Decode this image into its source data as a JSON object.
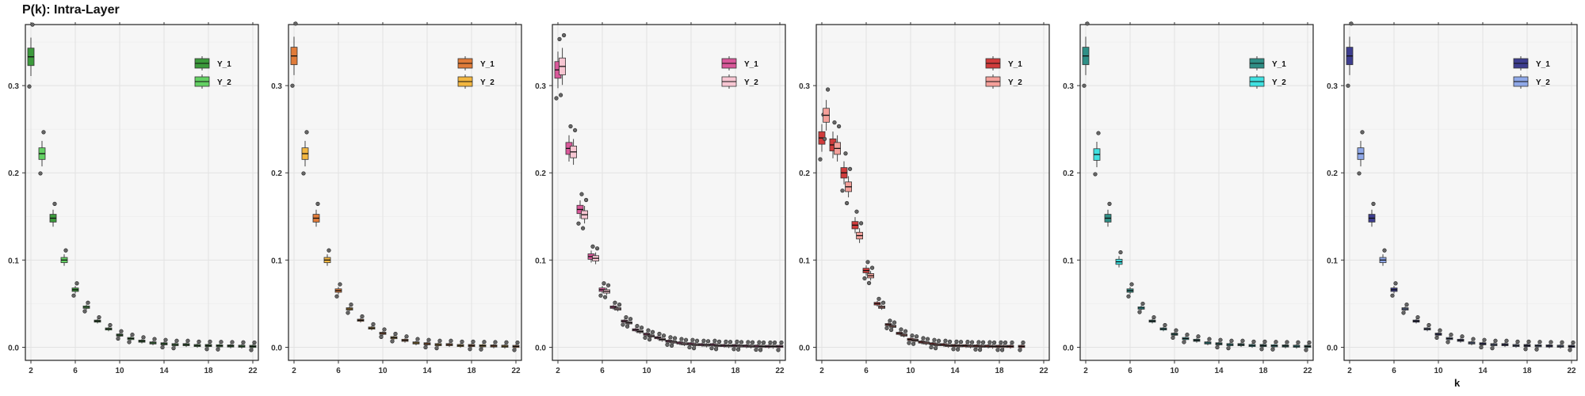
{
  "title": "P(k): Intra-Layer",
  "chart_data": {
    "type": "box",
    "xlabel": "k",
    "ylabel": "",
    "xlim": [
      1.5,
      22.5
    ],
    "ylim": [
      -0.015,
      0.37
    ],
    "xticks": [
      2,
      6,
      10,
      14,
      18,
      22
    ],
    "yticks": [
      0.0,
      0.1,
      0.2,
      0.3
    ],
    "ytick_labels": [
      "0.0",
      "0.1",
      "0.2",
      "0.3"
    ],
    "grid": true,
    "legend_position": "top-right",
    "panels": [
      {
        "series": [
          {
            "name": "Y_1",
            "color": "#3c9a3c",
            "k": [
              2,
              4,
              6,
              8,
              10,
              12,
              14,
              16,
              18,
              20,
              22
            ],
            "median": [
              0.333,
              0.148,
              0.066,
              0.03,
              0.014,
              0.007,
              0.004,
              0.003,
              0.002,
              0.0015,
              0.001
            ]
          },
          {
            "name": "Y_2",
            "color": "#63d063",
            "k": [
              3,
              5,
              7,
              9,
              11,
              13,
              15,
              17,
              19,
              21
            ],
            "median": [
              0.222,
              0.1,
              0.046,
              0.021,
              0.01,
              0.005,
              0.003,
              0.002,
              0.0017,
              0.0012
            ]
          }
        ]
      },
      {
        "series": [
          {
            "name": "Y_1",
            "color": "#e07b39",
            "k": [
              2,
              4,
              6,
              8,
              10,
              12,
              14,
              16,
              18,
              20,
              22
            ],
            "median": [
              0.334,
              0.148,
              0.065,
              0.031,
              0.016,
              0.008,
              0.004,
              0.003,
              0.002,
              0.0015,
              0.001
            ]
          },
          {
            "name": "Y_2",
            "color": "#f2b640",
            "k": [
              3,
              5,
              7,
              9,
              11,
              13,
              15,
              17,
              19,
              21
            ],
            "median": [
              0.222,
              0.1,
              0.044,
              0.022,
              0.011,
              0.005,
              0.003,
              0.002,
              0.0017,
              0.0012
            ]
          }
        ]
      },
      {
        "series": [
          {
            "name": "Y_1",
            "color": "#d9589a",
            "k": [
              2,
              3,
              4,
              5,
              6,
              7,
              8,
              9,
              10,
              11,
              12,
              13,
              14,
              15,
              16,
              17,
              18,
              19,
              20,
              21,
              22
            ],
            "median": [
              0.318,
              0.228,
              0.158,
              0.104,
              0.066,
              0.046,
              0.03,
              0.02,
              0.015,
              0.011,
              0.007,
              0.005,
              0.004,
              0.003,
              0.003,
              0.002,
              0.002,
              0.0015,
              0.0013,
              0.001,
              0.001
            ]
          },
          {
            "name": "Y_2",
            "color": "#f7c6d2",
            "k": [
              2.4,
              3.4,
              4.4,
              5.4,
              6.4,
              7.4,
              8.4,
              9.4,
              10.4,
              11.4,
              12.4,
              13.4,
              14.4,
              15.4,
              16.4,
              17.4,
              18.4,
              19.4,
              20.4,
              21.4
            ],
            "median": [
              0.322,
              0.224,
              0.152,
              0.102,
              0.064,
              0.044,
              0.028,
              0.018,
              0.013,
              0.009,
              0.006,
              0.004,
              0.003,
              0.0025,
              0.002,
              0.0017,
              0.0015,
              0.0012,
              0.001,
              0.001
            ]
          }
        ]
      },
      {
        "series": [
          {
            "name": "Y_1",
            "color": "#d03c3c",
            "k": [
              2,
              3,
              4,
              5,
              6,
              7,
              8,
              9,
              10,
              11,
              12,
              13,
              14,
              15,
              16,
              17,
              18,
              19,
              20
            ],
            "median": [
              0.24,
              0.232,
              0.2,
              0.14,
              0.088,
              0.05,
              0.026,
              0.016,
              0.009,
              0.006,
              0.004,
              0.003,
              0.002,
              0.0018,
              0.0015,
              0.0013,
              0.0011,
              0.001,
              0.001
            ]
          },
          {
            "name": "Y_2",
            "color": "#f4a09a",
            "k": [
              2.4,
              3.4,
              4.4,
              5.4,
              6.4,
              7.4,
              8.4,
              9.4,
              10.4,
              11.4,
              12.4,
              13.4,
              14.4,
              15.4,
              16.4,
              17.4,
              18.4
            ],
            "median": [
              0.266,
              0.228,
              0.184,
              0.128,
              0.082,
              0.046,
              0.024,
              0.014,
              0.008,
              0.005,
              0.003,
              0.002,
              0.0017,
              0.0014,
              0.0012,
              0.001,
              0.001
            ]
          }
        ]
      },
      {
        "series": [
          {
            "name": "Y_1",
            "color": "#2f8f86",
            "k": [
              2,
              4,
              6,
              8,
              10,
              12,
              14,
              16,
              18,
              20,
              22
            ],
            "median": [
              0.334,
              0.148,
              0.065,
              0.03,
              0.015,
              0.008,
              0.004,
              0.003,
              0.002,
              0.0015,
              0.001
            ]
          },
          {
            "name": "Y_2",
            "color": "#40e0e0",
            "k": [
              3,
              5,
              7,
              9,
              11,
              13,
              15,
              17,
              19,
              21
            ],
            "median": [
              0.221,
              0.098,
              0.045,
              0.021,
              0.01,
              0.005,
              0.003,
              0.002,
              0.0017,
              0.0012
            ]
          }
        ]
      },
      {
        "series": [
          {
            "name": "Y_1",
            "color": "#3d3d8f",
            "k": [
              2,
              4,
              6,
              8,
              10,
              12,
              14,
              16,
              18,
              20,
              22
            ],
            "median": [
              0.334,
              0.148,
              0.066,
              0.03,
              0.015,
              0.008,
              0.004,
              0.003,
              0.002,
              0.0015,
              0.001
            ]
          },
          {
            "name": "Y_2",
            "color": "#8fa8e8",
            "k": [
              3,
              5,
              7,
              9,
              11,
              13,
              15,
              17,
              19,
              21
            ],
            "median": [
              0.222,
              0.1,
              0.044,
              0.021,
              0.01,
              0.005,
              0.003,
              0.002,
              0.0017,
              0.0012
            ]
          }
        ]
      }
    ]
  }
}
